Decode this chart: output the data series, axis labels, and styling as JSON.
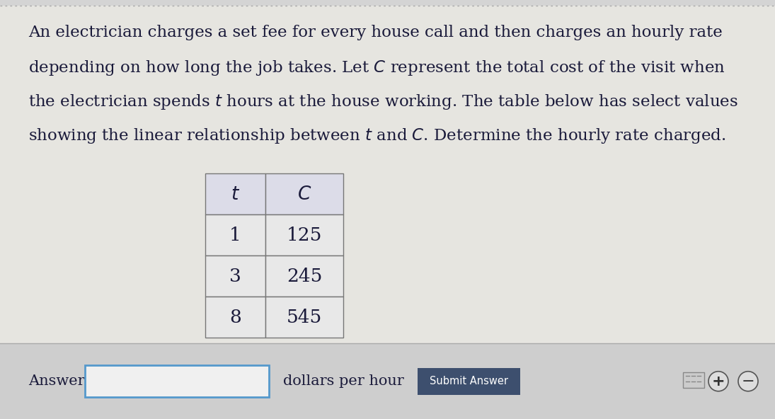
{
  "bg_color": "#d4d4d4",
  "main_bg": "#e6e5e0",
  "bottom_bg": "#cecece",
  "text_color": "#1a1a3a",
  "paragraph_lines": [
    "An electrician charges a set fee for every house call and then charges an hourly rate",
    "depending on how long the job takes. Let $C$ represent the total cost of the visit when",
    "the electrician spends $t$ hours at the house working. The table below has select values",
    "showing the linear relationship between $t$ and $C$. Determine the hourly rate charged."
  ],
  "table_header": [
    "t",
    "C"
  ],
  "table_rows": [
    [
      "1",
      "125"
    ],
    [
      "3",
      "245"
    ],
    [
      "8",
      "545"
    ]
  ],
  "table_border_color": "#777777",
  "table_header_bg": "#dcdce8",
  "table_cell_bg": "#e8e8e8",
  "answer_label": "Answer:",
  "answer_suffix": "dollars per hour",
  "submit_text": "Submit Answer",
  "submit_bg": "#3d4f6e",
  "submit_text_color": "#ffffff",
  "answer_box_border": "#5599cc",
  "answer_box_bg": "#f0f0f0",
  "font_size_paragraph": 16.5,
  "font_size_table": 19,
  "font_size_answer": 15,
  "top_dotted_color": "#aaaaaa"
}
